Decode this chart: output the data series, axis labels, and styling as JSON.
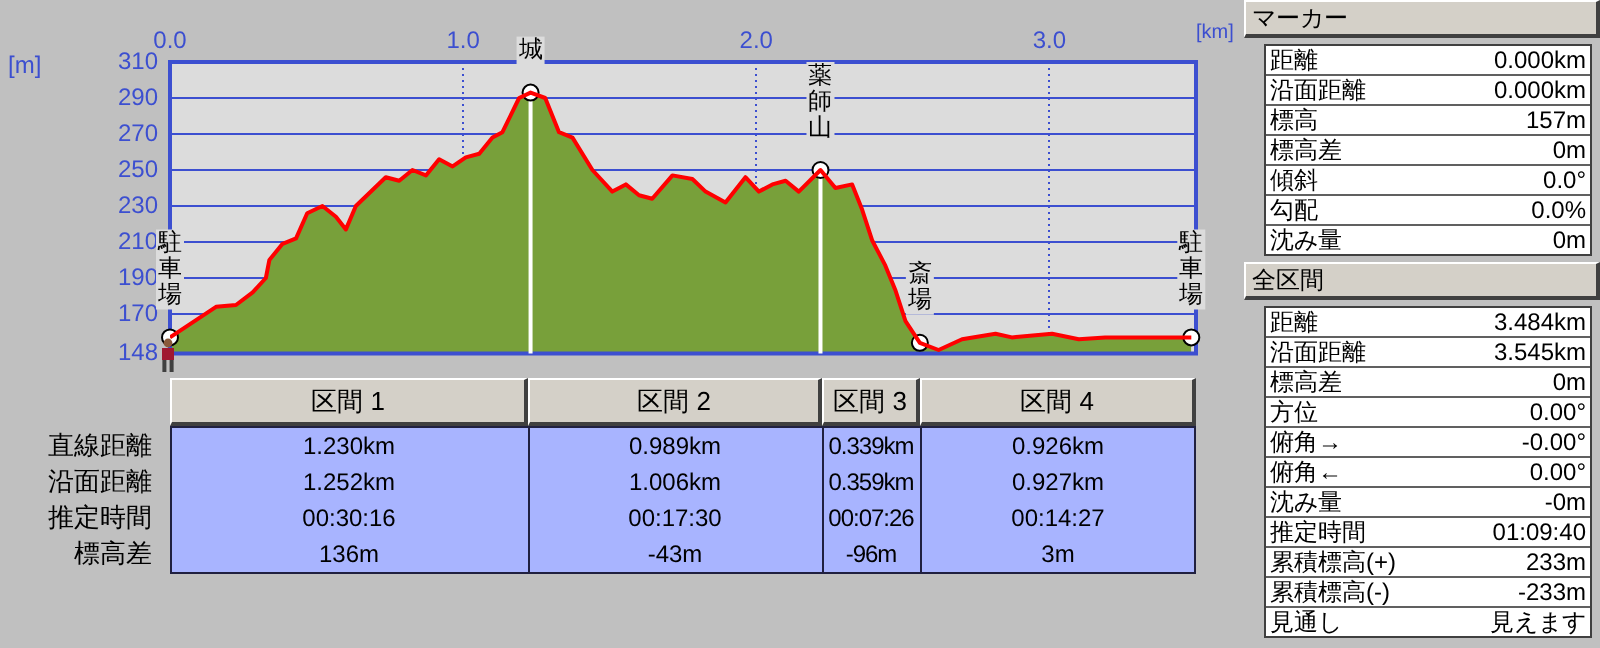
{
  "chart_data": [
    {
      "type": "area",
      "xlabel": "[km]",
      "ylabel": "[m]",
      "grid": true,
      "xlim": [
        0,
        3.5
      ],
      "xticks": [
        {
          "value": 0,
          "label": "0.0"
        },
        {
          "value": 1,
          "label": "1.0"
        },
        {
          "value": 2,
          "label": "2.0"
        },
        {
          "value": 3,
          "label": "3.0"
        }
      ],
      "ylim": [
        148,
        310
      ],
      "yticks": [
        148,
        170,
        190,
        210,
        230,
        250,
        270,
        290,
        310
      ],
      "x": [
        0,
        0.157,
        0.225,
        0.282,
        0.327,
        0.339,
        0.384,
        0.43,
        0.468,
        0.52,
        0.566,
        0.6,
        0.634,
        0.736,
        0.782,
        0.827,
        0.873,
        0.918,
        0.964,
        1.009,
        1.055,
        1.1,
        1.134,
        1.191,
        1.23,
        1.28,
        1.327,
        1.373,
        1.441,
        1.509,
        1.555,
        1.6,
        1.645,
        1.714,
        1.782,
        1.827,
        1.895,
        1.963,
        2.009,
        2.055,
        2.1,
        2.145,
        2.219,
        2.27,
        2.327,
        2.361,
        2.395,
        2.44,
        2.475,
        2.509,
        2.558,
        2.622,
        2.702,
        2.816,
        2.872,
        3.009,
        3.1,
        3.19,
        3.484
      ],
      "series": [
        {
          "color": "#78a03a",
          "values": [
            157,
            174,
            175,
            182,
            190,
            200,
            209,
            212,
            226,
            230,
            224,
            217,
            230,
            246,
            244,
            250,
            247,
            256,
            252,
            257,
            259,
            268,
            271,
            290,
            293,
            290,
            271,
            268,
            250,
            238,
            242,
            236,
            234,
            247,
            245,
            238,
            232,
            246,
            238,
            242,
            244,
            238,
            250,
            240,
            242,
            228,
            211,
            197,
            183,
            166,
            154,
            150,
            156,
            159,
            157,
            159,
            156,
            157,
            157
          ]
        },
        {
          "type": "line",
          "color": "#ff0000",
          "values": [
            157,
            174,
            175,
            182,
            190,
            200,
            209,
            212,
            226,
            230,
            224,
            217,
            230,
            246,
            244,
            250,
            247,
            256,
            252,
            257,
            259,
            268,
            271,
            290,
            293,
            290,
            271,
            268,
            250,
            238,
            242,
            236,
            234,
            247,
            245,
            238,
            232,
            246,
            238,
            242,
            244,
            238,
            250,
            240,
            242,
            228,
            211,
            197,
            183,
            166,
            154,
            150,
            156,
            159,
            157,
            159,
            156,
            157,
            157
          ]
        }
      ],
      "ref_lines": [
        {
          "axis": "x",
          "value": 1.23,
          "color": "#ffffff"
        },
        {
          "axis": "x",
          "value": 2.219,
          "color": "#ffffff"
        }
      ],
      "annotations": [
        {
          "text": "駐車場",
          "x": 0,
          "y": 157
        },
        {
          "text": "城",
          "x": 1.23,
          "y": 293
        },
        {
          "text": "薬師山",
          "x": 2.219,
          "y": 250
        },
        {
          "text": "斎場",
          "x": 2.558,
          "y": 154
        },
        {
          "text": "駐車場",
          "x": 3.484,
          "y": 157
        }
      ]
    },
    {
      "type": "other",
      "categories": [
        "区間 1",
        "区間 2",
        "区間 3",
        "区間 4"
      ],
      "y_categories": [
        "直線距離",
        "沿面距離",
        "推定時間",
        "標高差"
      ],
      "annotations": [
        "1.230km",
        "0.989km",
        "0.339km",
        "0.926km",
        "1.252km",
        "1.006km",
        "0.359km",
        "0.927km",
        "00:30:16",
        "00:17:30",
        "00:07:26",
        "00:14:27",
        "136m",
        "-43m",
        "-96m",
        "3m"
      ]
    },
    {
      "type": "other",
      "title": "マーカー",
      "y_categories": [
        "距離",
        "沿面距離",
        "標高",
        "標高差",
        "傾斜",
        "勾配",
        "沈み量"
      ],
      "annotations": [
        "0.000km",
        "0.000km",
        "157m",
        "0m",
        "0.0°",
        "0.0%",
        "0m"
      ]
    },
    {
      "type": "other",
      "title": "全区間",
      "y_categories": [
        "距離",
        "沿面距離",
        "標高差",
        "方位",
        "俯角→",
        "俯角←",
        "沈み量",
        "推定時間",
        "累積標高(+)",
        "累積標高(-)",
        "見通し"
      ],
      "annotations": [
        "3.484km",
        "3.545km",
        "0m",
        "0.00°",
        "-0.00°",
        "0.00°",
        "-0m",
        "01:09:40",
        "233m",
        "-233m",
        "見えます"
      ]
    }
  ]
}
